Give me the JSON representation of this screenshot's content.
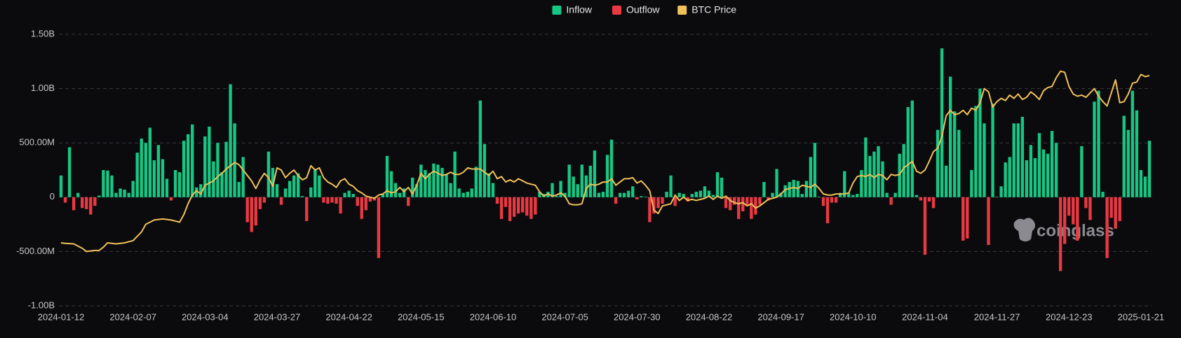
{
  "chart_data": {
    "type": "bar",
    "watermark": "coinglass",
    "legend": "top",
    "categories": [
      "2024-01-12",
      null,
      null,
      null,
      null,
      null,
      null,
      null,
      null,
      null,
      null,
      null,
      null,
      null,
      null,
      null,
      null,
      "2024-02-07",
      null,
      null,
      null,
      null,
      null,
      null,
      null,
      null,
      null,
      null,
      null,
      null,
      null,
      null,
      null,
      null,
      "2024-03-04",
      null,
      null,
      null,
      null,
      null,
      null,
      null,
      null,
      null,
      null,
      null,
      null,
      null,
      null,
      null,
      null,
      "2024-03-27",
      null,
      null,
      null,
      null,
      null,
      null,
      null,
      null,
      null,
      null,
      null,
      null,
      null,
      null,
      null,
      null,
      "2024-04-22",
      null,
      null,
      null,
      null,
      null,
      null,
      null,
      null,
      null,
      null,
      null,
      null,
      null,
      null,
      null,
      null,
      "2024-05-15",
      null,
      null,
      null,
      null,
      null,
      null,
      null,
      null,
      null,
      null,
      null,
      null,
      null,
      null,
      null,
      null,
      "2024-06-10",
      null,
      null,
      null,
      null,
      null,
      null,
      null,
      null,
      null,
      null,
      null,
      null,
      null,
      null,
      null,
      null,
      "2024-07-05",
      null,
      null,
      null,
      null,
      null,
      null,
      null,
      null,
      null,
      null,
      null,
      null,
      null,
      null,
      null,
      null,
      "2024-07-30",
      null,
      null,
      null,
      null,
      null,
      null,
      null,
      null,
      null,
      null,
      null,
      null,
      null,
      null,
      null,
      null,
      "2024-08-22",
      null,
      null,
      null,
      null,
      null,
      null,
      null,
      null,
      null,
      null,
      null,
      null,
      null,
      null,
      null,
      null,
      "2024-09-17",
      null,
      null,
      null,
      null,
      null,
      null,
      null,
      null,
      null,
      null,
      null,
      null,
      null,
      null,
      null,
      null,
      "2024-10-10",
      null,
      null,
      null,
      null,
      null,
      null,
      null,
      null,
      null,
      null,
      null,
      null,
      null,
      null,
      null,
      null,
      "2024-11-04",
      null,
      null,
      null,
      null,
      null,
      null,
      null,
      null,
      null,
      null,
      null,
      null,
      null,
      null,
      null,
      null,
      "2024-11-27",
      null,
      null,
      null,
      null,
      null,
      null,
      null,
      null,
      null,
      null,
      null,
      null,
      null,
      null,
      null,
      null,
      "2024-12-23",
      null,
      null,
      null,
      null,
      null,
      null,
      null,
      null,
      null,
      null,
      null,
      null,
      null,
      null,
      null,
      null,
      "2025-01-21",
      null,
      null
    ],
    "series": [
      {
        "name": "Inflow",
        "color": "#16c784",
        "type": "bar",
        "values": [
          200000000.0,
          null,
          460000000.0,
          null,
          40000000.0,
          null,
          null,
          null,
          null,
          15000000.0,
          250000000.0,
          245000000.0,
          200000000.0,
          40000000.0,
          80000000.0,
          70000000.0,
          40000000.0,
          150000000.0,
          410000000.0,
          540000000.0,
          500000000.0,
          640000000.0,
          340000000.0,
          480000000.0,
          350000000.0,
          170000000.0,
          null,
          250000000.0,
          230000000.0,
          520000000.0,
          580000000.0,
          670000000.0,
          90000000.0,
          120000000.0,
          560000000.0,
          650000000.0,
          330000000.0,
          500000000.0,
          230000000.0,
          510000000.0,
          1040000000.0,
          680000000.0,
          140000000.0,
          370000000.0,
          null,
          null,
          null,
          null,
          null,
          420000000.0,
          270000000.0,
          120000000.0,
          null,
          80000000.0,
          150000000.0,
          200000000.0,
          220000000.0,
          10000000.0,
          null,
          90000000.0,
          250000000.0,
          200000000.0,
          null,
          null,
          null,
          null,
          null,
          40000000.0,
          60000000.0,
          30000000.0,
          null,
          null,
          null,
          null,
          null,
          null,
          30000000.0,
          380000000.0,
          240000000.0,
          130000000.0,
          40000000.0,
          80000000.0,
          null,
          180000000.0,
          120000000.0,
          300000000.0,
          250000000.0,
          220000000.0,
          310000000.0,
          300000000.0,
          270000000.0,
          210000000.0,
          130000000.0,
          420000000.0,
          80000000.0,
          40000000.0,
          50000000.0,
          80000000.0,
          280000000.0,
          890000000.0,
          490000000.0,
          220000000.0,
          130000000.0,
          null,
          null,
          null,
          null,
          null,
          null,
          null,
          null,
          null,
          null,
          50000000.0,
          30000000.0,
          50000000.0,
          130000000.0,
          10000000.0,
          150000000.0,
          40000000.0,
          300000000.0,
          190000000.0,
          120000000.0,
          300000000.0,
          200000000.0,
          290000000.0,
          430000000.0,
          40000000.0,
          50000000.0,
          390000000.0,
          530000000.0,
          null,
          40000000.0,
          40000000.0,
          60000000.0,
          100000000.0,
          null,
          10000000.0,
          5000000.0,
          null,
          null,
          null,
          null,
          50000000.0,
          200000000.0,
          null,
          40000000.0,
          30000000.0,
          null,
          30000000.0,
          50000000.0,
          60000000.0,
          100000000.0,
          60000000.0,
          20000000.0,
          230000000.0,
          180000000.0,
          null,
          null,
          null,
          null,
          null,
          null,
          null,
          null,
          null,
          140000000.0,
          null,
          40000000.0,
          260000000.0,
          40000000.0,
          110000000.0,
          140000000.0,
          160000000.0,
          150000000.0,
          30000000.0,
          150000000.0,
          370000000.0,
          500000000.0,
          5000000.0,
          null,
          null,
          null,
          null,
          40000000.0,
          240000000.0,
          40000000.0,
          20000000.0,
          30000000.0,
          250000000.0,
          550000000.0,
          380000000.0,
          420000000.0,
          470000000.0,
          330000000.0,
          40000000.0,
          null,
          40000000.0,
          400000000.0,
          490000000.0,
          830000000.0,
          890000000.0,
          20000000.0,
          null,
          null,
          null,
          null,
          620000000.0,
          1370000000.0,
          290000000.0,
          1110000000.0,
          790000000.0,
          620000000.0,
          null,
          null,
          250000000.0,
          840000000.0,
          1000000000.0,
          680000000.0,
          null,
          860000000.0,
          5000000.0,
          100000000.0,
          320000000.0,
          370000000.0,
          680000000.0,
          680000000.0,
          740000000.0,
          340000000.0,
          480000000.0,
          360000000.0,
          590000000.0,
          440000000.0,
          400000000.0,
          610000000.0,
          500000000.0,
          null,
          null,
          null,
          null,
          null,
          470000000.0,
          null,
          null,
          880000000.0,
          980000000.0,
          50000000.0,
          null,
          null,
          null,
          null,
          750000000.0,
          620000000.0,
          980000000.0,
          800000000.0,
          250000000.0,
          190000000.0,
          520000000.0
        ]
      },
      {
        "name": "Outflow",
        "color": "#ea3943",
        "type": "bar",
        "values": [
          null,
          -50000000.0,
          null,
          -120000000.0,
          null,
          -100000000.0,
          -110000000.0,
          -160000000.0,
          -80000000.0,
          null,
          null,
          null,
          null,
          null,
          null,
          null,
          null,
          null,
          null,
          null,
          null,
          null,
          null,
          null,
          null,
          null,
          -30000000.0,
          null,
          null,
          null,
          null,
          null,
          null,
          null,
          null,
          null,
          null,
          null,
          null,
          null,
          null,
          null,
          null,
          null,
          -230000000.0,
          -320000000.0,
          -260000000.0,
          -110000000.0,
          -50000000.0,
          null,
          null,
          null,
          -70000000.0,
          null,
          null,
          null,
          null,
          null,
          -220000000.0,
          null,
          null,
          null,
          -50000000.0,
          -60000000.0,
          -50000000.0,
          -60000000.0,
          -150000000.0,
          null,
          null,
          null,
          -80000000.0,
          -200000000.0,
          -120000000.0,
          -40000000.0,
          -30000000.0,
          -560000000.0,
          null,
          null,
          null,
          null,
          null,
          null,
          -80000000.0,
          null,
          null,
          null,
          null,
          null,
          null,
          null,
          null,
          null,
          null,
          null,
          null,
          null,
          null,
          null,
          null,
          null,
          null,
          null,
          null,
          -60000000.0,
          -200000000.0,
          -90000000.0,
          -220000000.0,
          -180000000.0,
          -150000000.0,
          -140000000.0,
          -170000000.0,
          -200000000.0,
          -160000000.0,
          null,
          null,
          null,
          null,
          null,
          null,
          null,
          null,
          null,
          null,
          null,
          null,
          null,
          null,
          null,
          null,
          null,
          null,
          -60000000.0,
          null,
          null,
          null,
          null,
          -20000000.0,
          null,
          null,
          -230000000.0,
          -150000000.0,
          -100000000.0,
          -60000000.0,
          null,
          null,
          -80000000.0,
          null,
          null,
          -40000000.0,
          null,
          null,
          null,
          null,
          null,
          null,
          null,
          null,
          -100000000.0,
          -120000000.0,
          -70000000.0,
          -200000000.0,
          -130000000.0,
          -70000000.0,
          -200000000.0,
          -160000000.0,
          -70000000.0,
          null,
          -30000000.0,
          null,
          null,
          null,
          null,
          null,
          null,
          null,
          null,
          null,
          null,
          null,
          null,
          -80000000.0,
          -240000000.0,
          -50000000.0,
          -50000000.0,
          null,
          null,
          null,
          null,
          null,
          null,
          null,
          null,
          null,
          null,
          null,
          null,
          -70000000.0,
          null,
          null,
          null,
          null,
          null,
          null,
          -30000000.0,
          -530000000.0,
          -40000000.0,
          -100000000.0,
          null,
          null,
          null,
          null,
          null,
          null,
          -400000000.0,
          -380000000.0,
          null,
          null,
          null,
          null,
          -440000000.0,
          null,
          null,
          null,
          null,
          null,
          null,
          null,
          null,
          null,
          null,
          null,
          null,
          null,
          null,
          null,
          null,
          -680000000.0,
          -430000000.0,
          -170000000.0,
          -250000000.0,
          -400000000.0,
          null,
          -100000000.0,
          -210000000.0,
          null,
          null,
          null,
          -560000000.0,
          -190000000.0,
          -290000000.0,
          -220000000.0,
          null,
          null,
          null,
          null,
          null,
          null,
          null
        ]
      },
      {
        "name": "BTC Price",
        "color": "#f0c05a",
        "type": "line",
        "axis": "y2",
        "values": [
          43200,
          43000,
          42900,
          42800,
          42000,
          41200,
          40000,
          40200,
          40400,
          40400,
          41600,
          43200,
          43000,
          42800,
          43000,
          43200,
          43600,
          44000,
          45600,
          47200,
          50000,
          50800,
          51600,
          51800,
          52000,
          51800,
          51600,
          51200,
          50800,
          53600,
          57600,
          60800,
          62400,
          61200,
          64400,
          65200,
          66000,
          67600,
          68800,
          70400,
          71600,
          72800,
          72000,
          70000,
          68000,
          66000,
          63200,
          66400,
          68800,
          67200,
          64000,
          70800,
          70000,
          67200,
          68800,
          70000,
          68000,
          66400,
          67200,
          71600,
          70000,
          70800,
          67200,
          65600,
          64800,
          63600,
          66000,
          66800,
          64800,
          64000,
          62400,
          61600,
          60400,
          60000,
          59600,
          60800,
          61200,
          62400,
          61600,
          62000,
          63600,
          62000,
          63600,
          61200,
          64400,
          68800,
          66800,
          68400,
          69600,
          68800,
          68000,
          68400,
          69200,
          68400,
          68400,
          69200,
          70800,
          70400,
          70400,
          70400,
          69200,
          68000,
          69600,
          66800,
          67600,
          65600,
          66400,
          65600,
          66800,
          66000,
          65200,
          64800,
          64400,
          62000,
          60400,
          61200,
          60400,
          60800,
          61600,
          60400,
          57600,
          57200,
          57200,
          57600,
          63200,
          64800,
          64400,
          64800,
          65600,
          65600,
          66800,
          64400,
          65600,
          66800,
          66800,
          67200,
          65200,
          66000,
          64400,
          62400,
          55200,
          54000,
          56800,
          57200,
          57600,
          60800,
          58800,
          60000,
          58800,
          59200,
          58800,
          59200,
          59600,
          60400,
          59200,
          60400,
          59600,
          60400,
          58800,
          58000,
          57600,
          58000,
          56800,
          57600,
          56000,
          56800,
          58000,
          59200,
          59600,
          60000,
          61200,
          62800,
          63200,
          63600,
          63200,
          64400,
          64000,
          63600,
          64800,
          63200,
          61200,
          60800,
          60800,
          61200,
          61200,
          61200,
          61600,
          65200,
          67600,
          68000,
          67600,
          68400,
          67200,
          68400,
          68000,
          66400,
          68400,
          68000,
          68400,
          70800,
          72000,
          73200,
          69600,
          68800,
          70000,
          73200,
          76800,
          78000,
          82400,
          90000,
          92000,
          90400,
          90800,
          92000,
          90400,
          92800,
          92000,
          94800,
          100000,
          98800,
          93200,
          95200,
          96400,
          95600,
          97600,
          96400,
          98000,
          96000,
          96800,
          98800,
          97600,
          96000,
          99200,
          100400,
          100800,
          104000,
          106400,
          106000,
          100800,
          98000,
          97200,
          97600,
          96800,
          98400,
          100000,
          97200,
          95200,
          93600,
          98400,
          103200,
          94800,
          95200,
          98000,
          102000,
          102400,
          105200,
          104400,
          104800
        ]
      }
    ],
    "ylim": [
      -1000000000.0,
      1500000000.0
    ],
    "yticks": [
      {
        "value": -1000000000.0,
        "label": "-1.00B"
      },
      {
        "value": -500000000.0,
        "label": "-500.00M"
      },
      0,
      {
        "value": 500000000.0,
        "label": "500.00M"
      },
      {
        "value": 1000000000.0,
        "label": "1.00B"
      },
      {
        "value": 1500000000.0,
        "label": "1.50B"
      }
    ],
    "y2lim": [
      20000,
      120000
    ],
    "grid": true
  }
}
